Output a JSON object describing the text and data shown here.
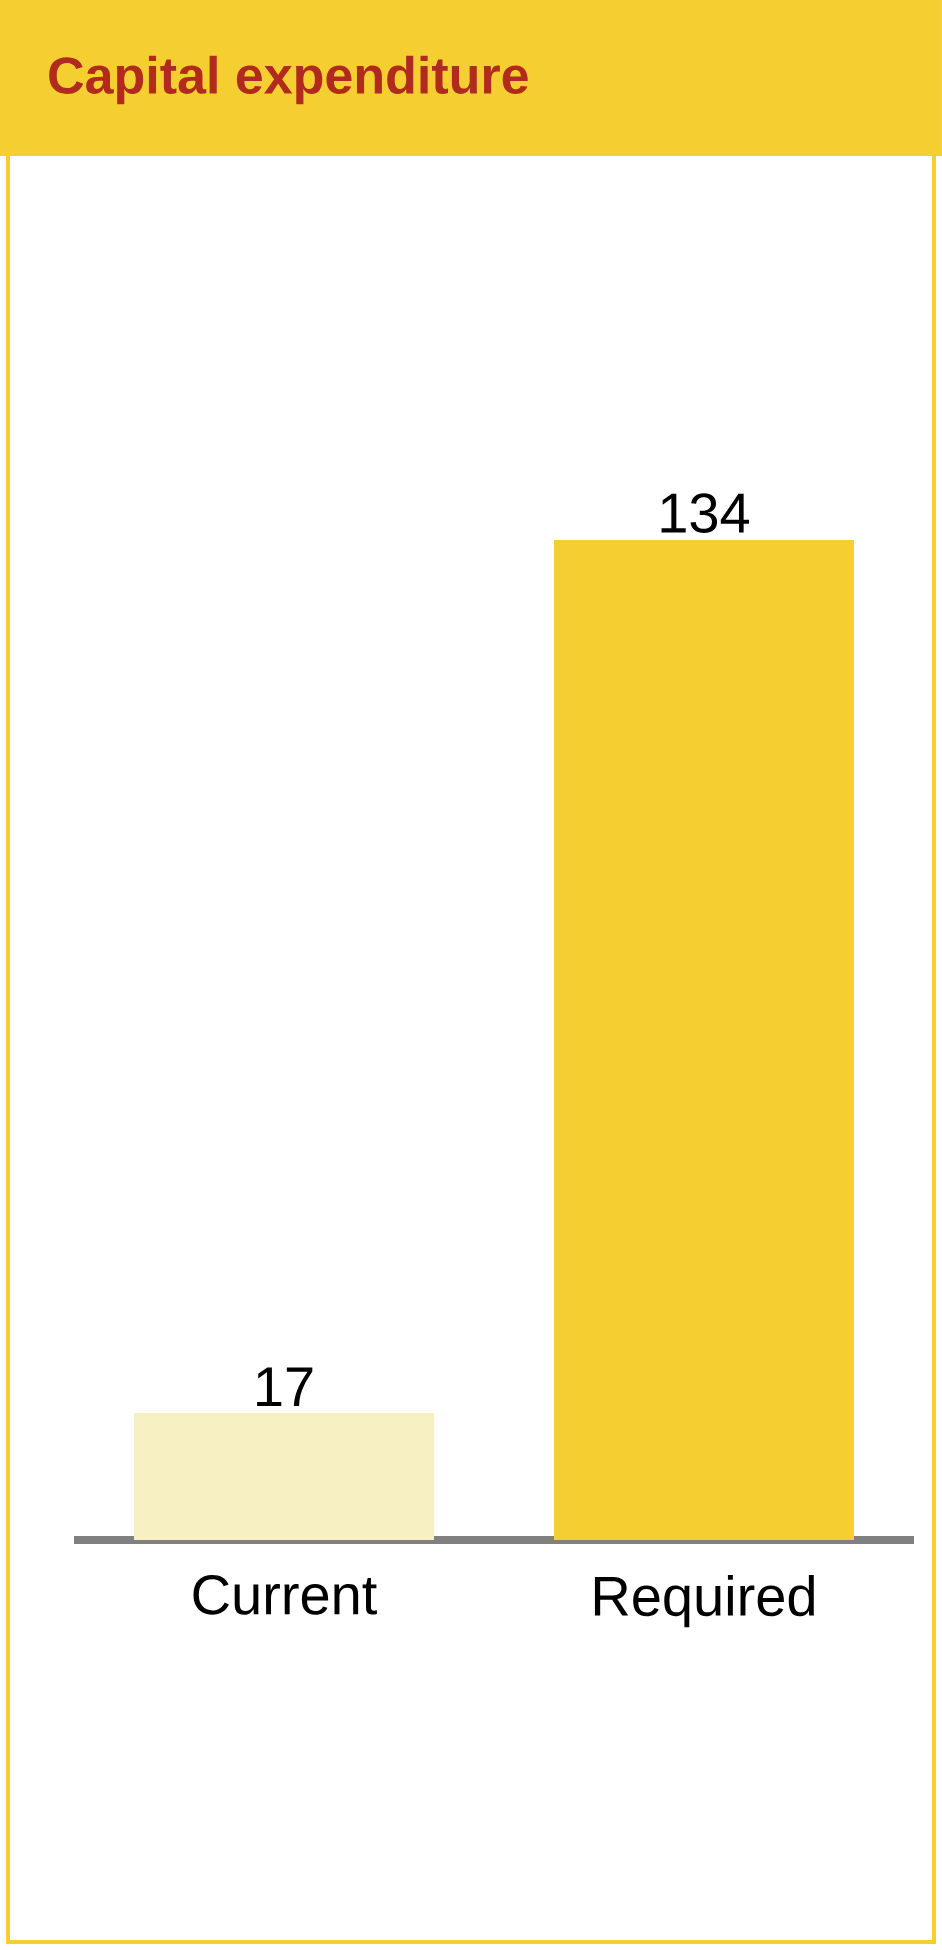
{
  "chart_data": {
    "type": "bar",
    "title": "Capital expenditure",
    "categories": [
      "Current",
      "Required"
    ],
    "values": [
      17,
      134
    ],
    "colors": [
      "#f7f0c2",
      "#f5cf32"
    ],
    "data_labels": true
  }
}
